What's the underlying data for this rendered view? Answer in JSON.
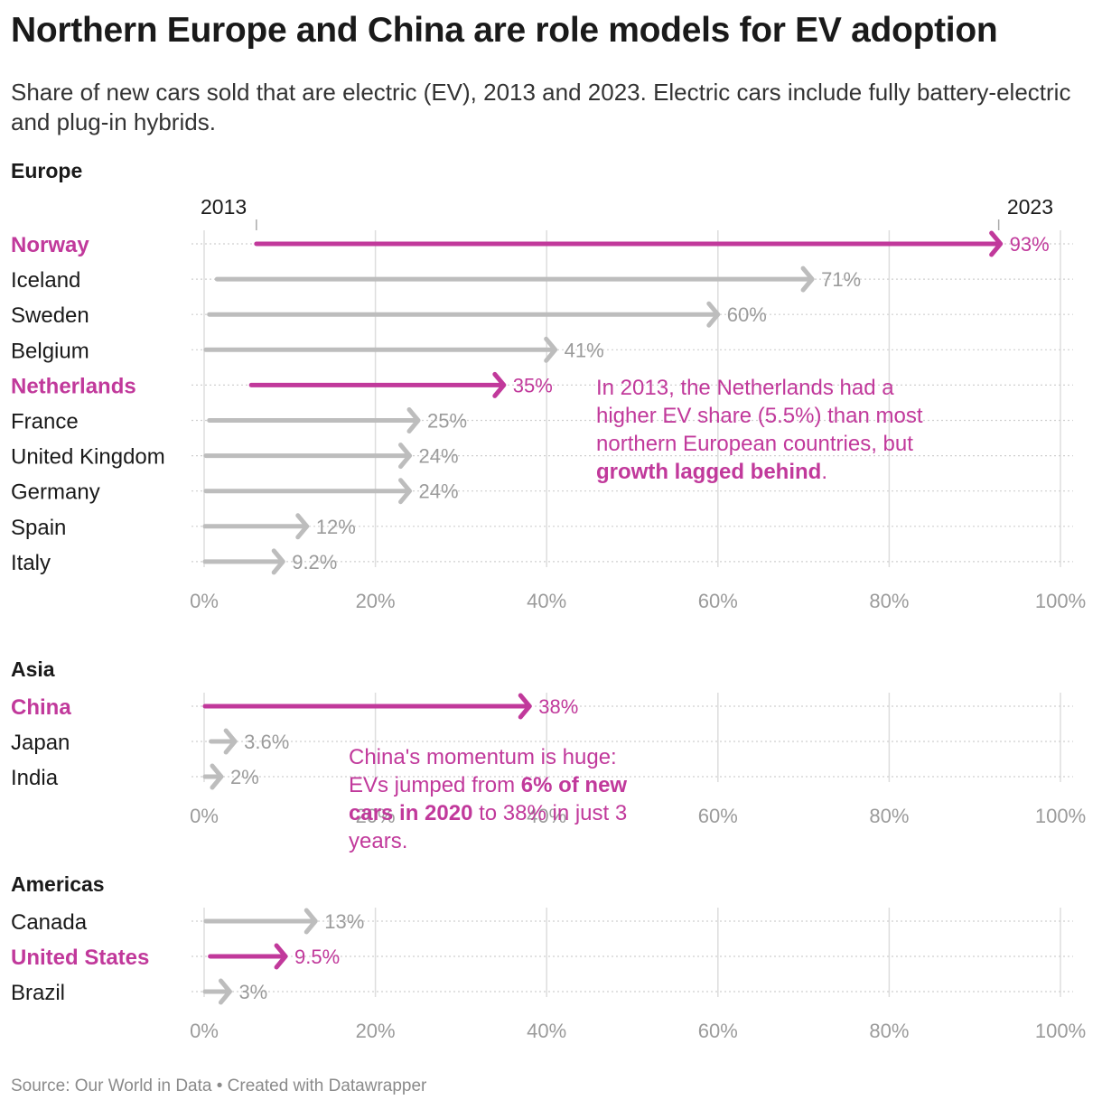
{
  "title": "Northern Europe and China are role models for EV adoption",
  "subtitle": "Share of new cars sold that are electric (EV), 2013 and 2023. Electric cars include fully battery-electric and plug-in hybrids.",
  "footer": "Source: Our World in Data • Created with Datawrapper",
  "colors": {
    "highlight": "#c1399b",
    "default": "#bdbdbd",
    "grid": "#dddddd",
    "tick_text": "#9b9b9b"
  },
  "year_labels": {
    "start": "2013",
    "end": "2023"
  },
  "annotations": {
    "netherlands": {
      "text_before": "In 2013, the Netherlands had a higher EV share (5.5%) than most northern European countries, but ",
      "bold": "growth lagged behind",
      "text_after": "."
    },
    "china": {
      "text_before": "China's momentum is huge: EVs jumped from ",
      "bold": "6% of new cars in 2020",
      "text_after": " to 38% in just 3 years."
    }
  },
  "chart_data": {
    "type": "arrow",
    "x_range": [
      0,
      100
    ],
    "x_unit": "%",
    "ticks": [
      0,
      20,
      40,
      60,
      80,
      100
    ],
    "tick_labels": [
      "0%",
      "20%",
      "40%",
      "60%",
      "80%",
      "100%"
    ],
    "groups": [
      {
        "name": "Europe",
        "rows": [
          {
            "label": "Norway",
            "start": 6.1,
            "end": 93,
            "value_label": "93%",
            "highlight": true
          },
          {
            "label": "Iceland",
            "start": 1.5,
            "end": 71,
            "value_label": "71%",
            "highlight": false
          },
          {
            "label": "Sweden",
            "start": 0.6,
            "end": 60,
            "value_label": "60%",
            "highlight": false
          },
          {
            "label": "Belgium",
            "start": 0.2,
            "end": 41,
            "value_label": "41%",
            "highlight": false
          },
          {
            "label": "Netherlands",
            "start": 5.5,
            "end": 35,
            "value_label": "35%",
            "highlight": true
          },
          {
            "label": "France",
            "start": 0.6,
            "end": 25,
            "value_label": "25%",
            "highlight": false
          },
          {
            "label": "United Kingdom",
            "start": 0.2,
            "end": 24,
            "value_label": "24%",
            "highlight": false
          },
          {
            "label": "Germany",
            "start": 0.2,
            "end": 24,
            "value_label": "24%",
            "highlight": false
          },
          {
            "label": "Spain",
            "start": 0.1,
            "end": 12,
            "value_label": "12%",
            "highlight": false
          },
          {
            "label": "Italy",
            "start": 0.1,
            "end": 9.2,
            "value_label": "9.2%",
            "highlight": false
          }
        ]
      },
      {
        "name": "Asia",
        "rows": [
          {
            "label": "China",
            "start": 0.1,
            "end": 38,
            "value_label": "38%",
            "highlight": true
          },
          {
            "label": "Japan",
            "start": 0.8,
            "end": 3.6,
            "value_label": "3.6%",
            "highlight": false
          },
          {
            "label": "India",
            "start": 0.1,
            "end": 2,
            "value_label": "2%",
            "highlight": false
          }
        ]
      },
      {
        "name": "Americas",
        "rows": [
          {
            "label": "Canada",
            "start": 0.2,
            "end": 13,
            "value_label": "13%",
            "highlight": false
          },
          {
            "label": "United States",
            "start": 0.7,
            "end": 9.5,
            "value_label": "9.5%",
            "highlight": true
          },
          {
            "label": "Brazil",
            "start": 0.1,
            "end": 3,
            "value_label": "3%",
            "highlight": false
          }
        ]
      }
    ]
  }
}
